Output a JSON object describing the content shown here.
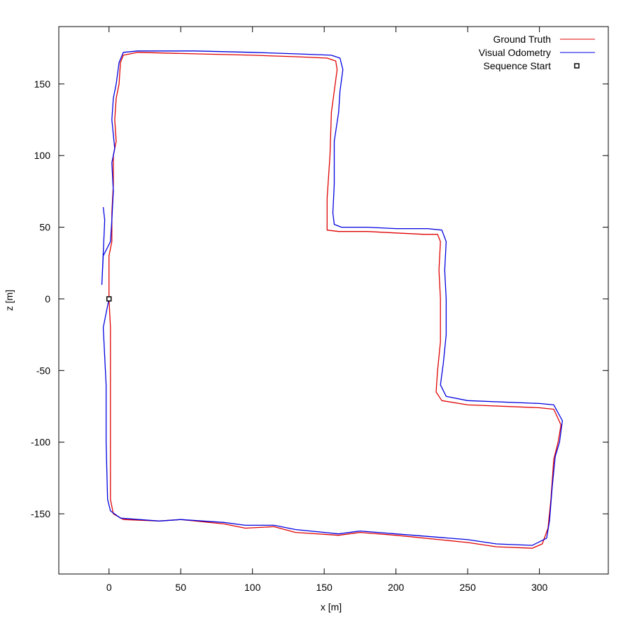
{
  "chart_data": {
    "type": "line",
    "xlabel": "x [m]",
    "ylabel": "z [m]",
    "xlim": [
      -35,
      348
    ],
    "ylim": [
      -192,
      190
    ],
    "x_ticks": [
      0,
      50,
      100,
      150,
      200,
      250,
      300
    ],
    "y_ticks": [
      150,
      100,
      50,
      0,
      -50,
      -100,
      -150
    ],
    "x_tick_labels": [
      "0",
      "50",
      "100",
      "150",
      "200",
      "250",
      "300"
    ],
    "y_tick_labels": [
      "150",
      "100",
      "50",
      "0",
      "-50",
      "-100",
      "-150"
    ],
    "grid": false,
    "legend_position": "top-right",
    "series": [
      {
        "name": "Ground Truth",
        "color": "#e00000",
        "points": [
          [
            0,
            0
          ],
          [
            1,
            -20
          ],
          [
            1,
            -60
          ],
          [
            1,
            -100
          ],
          [
            1,
            -140
          ],
          [
            3,
            -150
          ],
          [
            10,
            -154
          ],
          [
            35,
            -155
          ],
          [
            50,
            -154
          ],
          [
            80,
            -157
          ],
          [
            95,
            -160
          ],
          [
            115,
            -159
          ],
          [
            130,
            -163
          ],
          [
            160,
            -165
          ],
          [
            175,
            -163
          ],
          [
            200,
            -165
          ],
          [
            250,
            -170
          ],
          [
            270,
            -173
          ],
          [
            295,
            -174
          ],
          [
            302,
            -171
          ],
          [
            306,
            -160
          ],
          [
            308,
            -140
          ],
          [
            310,
            -112
          ],
          [
            313,
            -100
          ],
          [
            315,
            -88
          ],
          [
            310,
            -77
          ],
          [
            300,
            -76
          ],
          [
            250,
            -74
          ],
          [
            232,
            -71
          ],
          [
            228,
            -65
          ],
          [
            229,
            -50
          ],
          [
            231,
            -30
          ],
          [
            231,
            0
          ],
          [
            230,
            20
          ],
          [
            231,
            40
          ],
          [
            229,
            45
          ],
          [
            220,
            45
          ],
          [
            200,
            46
          ],
          [
            180,
            47
          ],
          [
            160,
            47
          ],
          [
            152,
            48
          ],
          [
            152,
            55
          ],
          [
            152,
            70
          ],
          [
            154,
            100
          ],
          [
            155,
            130
          ],
          [
            157,
            145
          ],
          [
            159,
            160
          ],
          [
            158,
            166
          ],
          [
            152,
            168
          ],
          [
            130,
            169
          ],
          [
            100,
            170
          ],
          [
            60,
            171
          ],
          [
            20,
            172
          ],
          [
            10,
            170
          ],
          [
            8,
            165
          ],
          [
            7,
            150
          ],
          [
            5,
            140
          ],
          [
            4,
            125
          ],
          [
            5,
            110
          ],
          [
            3,
            100
          ],
          [
            3,
            80
          ],
          [
            2,
            60
          ],
          [
            2,
            40
          ],
          [
            0,
            30
          ],
          [
            0,
            0
          ]
        ]
      },
      {
        "name": "Visual Odometry",
        "color": "#0000e0",
        "points": [
          [
            0,
            0
          ],
          [
            -4,
            -20
          ],
          [
            -2,
            -60
          ],
          [
            -2,
            -100
          ],
          [
            -1,
            -140
          ],
          [
            1,
            -148
          ],
          [
            8,
            -153
          ],
          [
            35,
            -155
          ],
          [
            50,
            -154
          ],
          [
            80,
            -156
          ],
          [
            95,
            -158
          ],
          [
            115,
            -158
          ],
          [
            130,
            -161
          ],
          [
            160,
            -164
          ],
          [
            175,
            -162
          ],
          [
            200,
            -164
          ],
          [
            250,
            -168
          ],
          [
            270,
            -171
          ],
          [
            295,
            -172
          ],
          [
            305,
            -167
          ],
          [
            307,
            -155
          ],
          [
            309,
            -130
          ],
          [
            311,
            -110
          ],
          [
            314,
            -100
          ],
          [
            316,
            -85
          ],
          [
            310,
            -74
          ],
          [
            300,
            -73
          ],
          [
            250,
            -71
          ],
          [
            235,
            -68
          ],
          [
            231,
            -60
          ],
          [
            233,
            -45
          ],
          [
            235,
            -25
          ],
          [
            235,
            0
          ],
          [
            234,
            20
          ],
          [
            235,
            40
          ],
          [
            232,
            48
          ],
          [
            222,
            49
          ],
          [
            200,
            49
          ],
          [
            180,
            50
          ],
          [
            162,
            50
          ],
          [
            157,
            52
          ],
          [
            156,
            60
          ],
          [
            157,
            80
          ],
          [
            157,
            110
          ],
          [
            160,
            130
          ],
          [
            161,
            145
          ],
          [
            163,
            160
          ],
          [
            161,
            168
          ],
          [
            155,
            170
          ],
          [
            130,
            171
          ],
          [
            100,
            172
          ],
          [
            60,
            173
          ],
          [
            20,
            173
          ],
          [
            10,
            172
          ],
          [
            7,
            165
          ],
          [
            5,
            150
          ],
          [
            3,
            140
          ],
          [
            2,
            125
          ],
          [
            4,
            105
          ],
          [
            2,
            95
          ],
          [
            3,
            75
          ],
          [
            2,
            55
          ],
          [
            1,
            40
          ],
          [
            -4,
            30
          ],
          [
            -5,
            10
          ],
          [
            -3,
            55
          ],
          [
            -4,
            64
          ]
        ]
      }
    ],
    "markers": [
      {
        "name": "Sequence Start",
        "x": 0,
        "y": 0,
        "symbol": "square",
        "color": "#000000"
      }
    ]
  }
}
